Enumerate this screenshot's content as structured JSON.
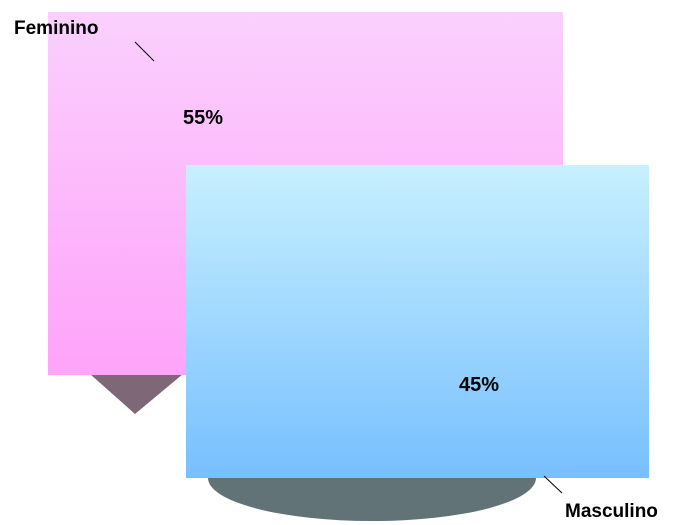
{
  "chart_data": {
    "type": "pie",
    "style": "3d-exploded",
    "categories": [
      "Feminino",
      "Masculino"
    ],
    "values": [
      55,
      45
    ],
    "data_labels": [
      "55%",
      "45%"
    ],
    "colors": {
      "Feminino": {
        "top": "#fad0fd",
        "bottom": "#fea3f9",
        "side": "#7e6777"
      },
      "Masculino": {
        "top": "#c8f0fe",
        "bottom": "#77bffe",
        "side": "#627378"
      }
    },
    "legend": "none"
  }
}
